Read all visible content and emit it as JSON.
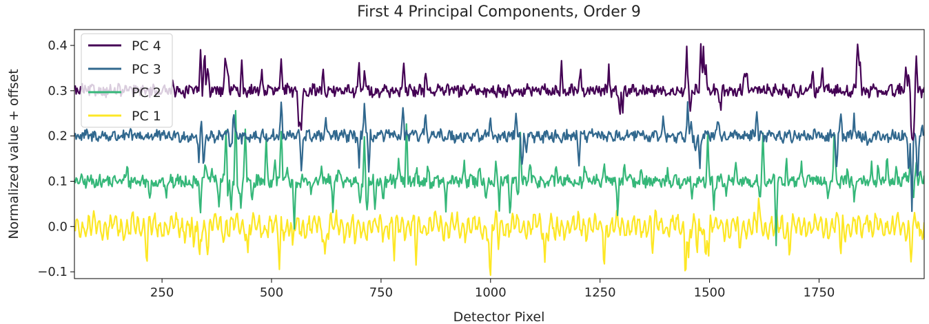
{
  "chart_data": {
    "type": "line",
    "title": "First 4 Principal Components, Order 9",
    "xlabel": "Detector Pixel",
    "ylabel": "Normalized value + offset",
    "xlim": [
      50,
      1990
    ],
    "ylim": [
      -0.115,
      0.435
    ],
    "xticks": [
      250,
      500,
      750,
      1000,
      1250,
      1500,
      1750
    ],
    "yticks": [
      -0.1,
      0.0,
      0.1,
      0.2,
      0.3,
      0.4
    ],
    "ytick_labels": [
      "−0.1",
      "0.0",
      "0.1",
      "0.2",
      "0.3",
      "0.4"
    ],
    "grid": false,
    "legend_position": "upper left",
    "series": [
      {
        "name": "PC 4",
        "color": "#440154",
        "offset": 0.3,
        "noise_amplitude": 0.012,
        "features": [
          {
            "x": 275,
            "y": 0.33
          },
          {
            "x": 338,
            "y": 0.385
          },
          {
            "x": 347,
            "y": 0.39
          },
          {
            "x": 355,
            "y": 0.355
          },
          {
            "x": 395,
            "y": 0.39
          },
          {
            "x": 400,
            "y": 0.345
          },
          {
            "x": 432,
            "y": 0.36
          },
          {
            "x": 478,
            "y": 0.35
          },
          {
            "x": 522,
            "y": 0.365
          },
          {
            "x": 563,
            "y": 0.2
          },
          {
            "x": 568,
            "y": 0.22
          },
          {
            "x": 618,
            "y": 0.35
          },
          {
            "x": 700,
            "y": 0.35
          },
          {
            "x": 712,
            "y": 0.345
          },
          {
            "x": 802,
            "y": 0.35
          },
          {
            "x": 852,
            "y": 0.35
          },
          {
            "x": 1162,
            "y": 0.355
          },
          {
            "x": 1205,
            "y": 0.345
          },
          {
            "x": 1270,
            "y": 0.35
          },
          {
            "x": 1295,
            "y": 0.25
          },
          {
            "x": 1302,
            "y": 0.26
          },
          {
            "x": 1448,
            "y": 0.39
          },
          {
            "x": 1456,
            "y": 0.26
          },
          {
            "x": 1480,
            "y": 0.405
          },
          {
            "x": 1486,
            "y": 0.385
          },
          {
            "x": 1492,
            "y": 0.345
          },
          {
            "x": 1525,
            "y": 0.25
          },
          {
            "x": 1580,
            "y": 0.35
          },
          {
            "x": 1585,
            "y": 0.345
          },
          {
            "x": 1735,
            "y": 0.345
          },
          {
            "x": 1758,
            "y": 0.345
          },
          {
            "x": 1838,
            "y": 0.41
          },
          {
            "x": 1843,
            "y": 0.375
          },
          {
            "x": 1855,
            "y": 0.29
          },
          {
            "x": 1948,
            "y": 0.36
          },
          {
            "x": 1955,
            "y": 0.33
          },
          {
            "x": 1960,
            "y": 0.26
          },
          {
            "x": 1962,
            "y": 0.22
          },
          {
            "x": 1966,
            "y": 0.19
          },
          {
            "x": 1972,
            "y": 0.38
          }
        ]
      },
      {
        "name": "PC 3",
        "color": "#31688e",
        "offset": 0.2,
        "noise_amplitude": 0.012,
        "features": [
          {
            "x": 275,
            "y": 0.2
          },
          {
            "x": 335,
            "y": 0.13
          },
          {
            "x": 338,
            "y": 0.24
          },
          {
            "x": 345,
            "y": 0.125
          },
          {
            "x": 405,
            "y": 0.18
          },
          {
            "x": 414,
            "y": 0.26
          },
          {
            "x": 430,
            "y": 0.195
          },
          {
            "x": 522,
            "y": 0.27
          },
          {
            "x": 568,
            "y": 0.12
          },
          {
            "x": 624,
            "y": 0.23
          },
          {
            "x": 700,
            "y": 0.14
          },
          {
            "x": 712,
            "y": 0.27
          },
          {
            "x": 722,
            "y": 0.12
          },
          {
            "x": 800,
            "y": 0.26
          },
          {
            "x": 852,
            "y": 0.25
          },
          {
            "x": 1000,
            "y": 0.25
          },
          {
            "x": 1058,
            "y": 0.25
          },
          {
            "x": 1072,
            "y": 0.125
          },
          {
            "x": 1082,
            "y": 0.16
          },
          {
            "x": 1202,
            "y": 0.14
          },
          {
            "x": 1395,
            "y": 0.24
          },
          {
            "x": 1450,
            "y": 0.275
          },
          {
            "x": 1458,
            "y": 0.24
          },
          {
            "x": 1468,
            "y": 0.18
          },
          {
            "x": 1478,
            "y": 0.135
          },
          {
            "x": 1490,
            "y": 0.2
          },
          {
            "x": 1520,
            "y": 0.24
          },
          {
            "x": 1608,
            "y": 0.25
          },
          {
            "x": 1655,
            "y": 0.21
          },
          {
            "x": 1790,
            "y": 0.14
          },
          {
            "x": 1800,
            "y": 0.24
          },
          {
            "x": 1830,
            "y": 0.25
          },
          {
            "x": 1862,
            "y": 0.17
          },
          {
            "x": 1955,
            "y": 0.12
          },
          {
            "x": 1962,
            "y": 0.04
          },
          {
            "x": 1975,
            "y": 0.08
          },
          {
            "x": 1985,
            "y": 0.23
          }
        ]
      },
      {
        "name": "PC 2",
        "color": "#35b779",
        "offset": 0.1,
        "noise_amplitude": 0.013,
        "features": [
          {
            "x": 170,
            "y": 0.14
          },
          {
            "x": 222,
            "y": 0.06
          },
          {
            "x": 260,
            "y": 0.055
          },
          {
            "x": 338,
            "y": 0.035
          },
          {
            "x": 350,
            "y": 0.14
          },
          {
            "x": 363,
            "y": 0.13
          },
          {
            "x": 380,
            "y": 0.05
          },
          {
            "x": 396,
            "y": 0.225
          },
          {
            "x": 400,
            "y": 0.07
          },
          {
            "x": 408,
            "y": 0.04
          },
          {
            "x": 418,
            "y": 0.25
          },
          {
            "x": 425,
            "y": 0.065
          },
          {
            "x": 430,
            "y": 0.04
          },
          {
            "x": 440,
            "y": 0.22
          },
          {
            "x": 456,
            "y": 0.06
          },
          {
            "x": 488,
            "y": 0.2
          },
          {
            "x": 508,
            "y": 0.14
          },
          {
            "x": 522,
            "y": 0.22
          },
          {
            "x": 536,
            "y": 0.12
          },
          {
            "x": 552,
            "y": 0.0
          },
          {
            "x": 566,
            "y": 0.08
          },
          {
            "x": 590,
            "y": 0.08
          },
          {
            "x": 615,
            "y": 0.13
          },
          {
            "x": 640,
            "y": 0.035
          },
          {
            "x": 655,
            "y": 0.13
          },
          {
            "x": 702,
            "y": 0.06
          },
          {
            "x": 712,
            "y": 0.185
          },
          {
            "x": 718,
            "y": 0.025
          },
          {
            "x": 736,
            "y": 0.04
          },
          {
            "x": 755,
            "y": 0.03
          },
          {
            "x": 790,
            "y": 0.14
          },
          {
            "x": 808,
            "y": 0.22
          },
          {
            "x": 830,
            "y": 0.13
          },
          {
            "x": 857,
            "y": 0.13
          },
          {
            "x": 898,
            "y": 0.03
          },
          {
            "x": 940,
            "y": 0.15
          },
          {
            "x": 975,
            "y": 0.14
          },
          {
            "x": 990,
            "y": 0.065
          },
          {
            "x": 1012,
            "y": 0.14
          },
          {
            "x": 1020,
            "y": 0.04
          },
          {
            "x": 1045,
            "y": 0.02
          },
          {
            "x": 1062,
            "y": 0.06
          },
          {
            "x": 1068,
            "y": 0.2
          },
          {
            "x": 1090,
            "y": 0.14
          },
          {
            "x": 1150,
            "y": 0.14
          },
          {
            "x": 1215,
            "y": 0.14
          },
          {
            "x": 1260,
            "y": 0.14
          },
          {
            "x": 1290,
            "y": 0.03
          },
          {
            "x": 1306,
            "y": 0.15
          },
          {
            "x": 1345,
            "y": 0.13
          },
          {
            "x": 1405,
            "y": 0.13
          },
          {
            "x": 1460,
            "y": 0.05
          },
          {
            "x": 1496,
            "y": 0.2
          },
          {
            "x": 1510,
            "y": 0.04
          },
          {
            "x": 1538,
            "y": 0.07
          },
          {
            "x": 1560,
            "y": 0.13
          },
          {
            "x": 1615,
            "y": 0.07
          },
          {
            "x": 1622,
            "y": 0.2
          },
          {
            "x": 1652,
            "y": -0.04
          },
          {
            "x": 1676,
            "y": 0.15
          },
          {
            "x": 1710,
            "y": 0.14
          },
          {
            "x": 1770,
            "y": 0.06
          },
          {
            "x": 1785,
            "y": 0.22
          },
          {
            "x": 1815,
            "y": 0.13
          },
          {
            "x": 1830,
            "y": 0.055
          },
          {
            "x": 1870,
            "y": 0.135
          },
          {
            "x": 1885,
            "y": 0.14
          },
          {
            "x": 1905,
            "y": 0.15
          },
          {
            "x": 1925,
            "y": 0.125
          },
          {
            "x": 1945,
            "y": 0.12
          },
          {
            "x": 1958,
            "y": 0.16
          },
          {
            "x": 1965,
            "y": 0.05
          },
          {
            "x": 1972,
            "y": 0.145
          },
          {
            "x": 1982,
            "y": 0.13
          }
        ]
      },
      {
        "name": "PC 1",
        "color": "#fde725",
        "offset": 0.0,
        "noise_amplitude": 0.022,
        "features": [
          {
            "x": 215,
            "y": -0.07
          },
          {
            "x": 322,
            "y": -0.075
          },
          {
            "x": 335,
            "y": -0.08
          },
          {
            "x": 355,
            "y": -0.065
          },
          {
            "x": 446,
            "y": -0.065
          },
          {
            "x": 518,
            "y": -0.08
          },
          {
            "x": 548,
            "y": -0.06
          },
          {
            "x": 622,
            "y": -0.06
          },
          {
            "x": 690,
            "y": -0.04
          },
          {
            "x": 780,
            "y": -0.065
          },
          {
            "x": 830,
            "y": -0.07
          },
          {
            "x": 998,
            "y": -0.065
          },
          {
            "x": 1000,
            "y": -0.085
          },
          {
            "x": 1018,
            "y": -0.04
          },
          {
            "x": 1124,
            "y": -0.075
          },
          {
            "x": 1148,
            "y": -0.055
          },
          {
            "x": 1260,
            "y": -0.078
          },
          {
            "x": 1370,
            "y": -0.05
          },
          {
            "x": 1445,
            "y": -0.088
          },
          {
            "x": 1452,
            "y": -0.07
          },
          {
            "x": 1472,
            "y": -0.055
          },
          {
            "x": 1478,
            "y": -0.02
          },
          {
            "x": 1491,
            "y": -0.075
          },
          {
            "x": 1498,
            "y": -0.04
          },
          {
            "x": 1568,
            "y": -0.055
          },
          {
            "x": 1612,
            "y": 0.05
          },
          {
            "x": 1682,
            "y": -0.05
          },
          {
            "x": 1800,
            "y": -0.05
          },
          {
            "x": 1860,
            "y": 0.055
          },
          {
            "x": 1960,
            "y": -0.065
          },
          {
            "x": 1980,
            "y": -0.04
          }
        ]
      }
    ]
  }
}
